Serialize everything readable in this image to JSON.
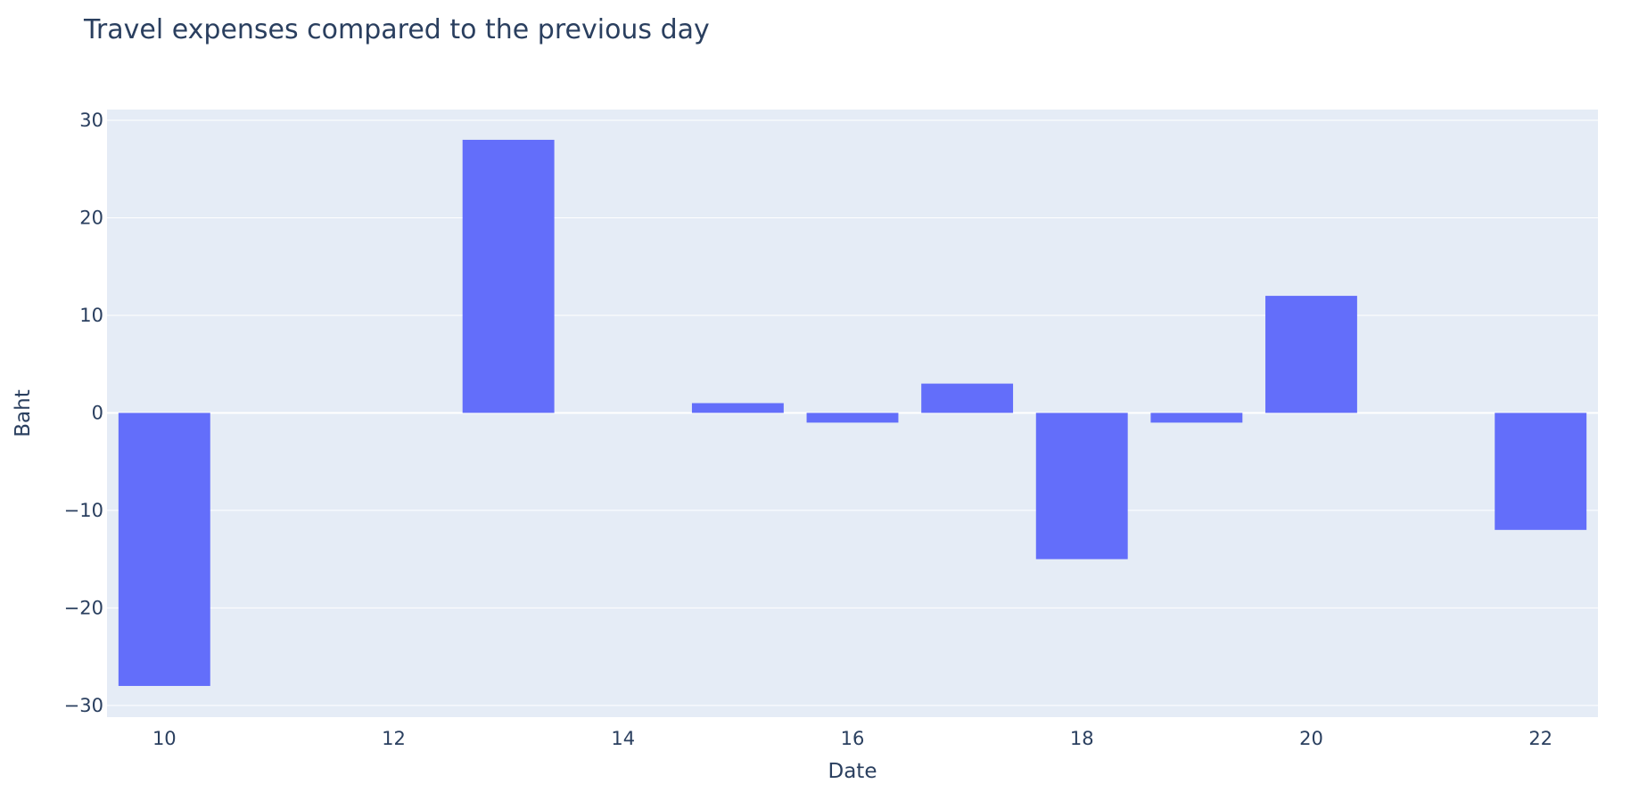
{
  "chart_data": {
    "type": "bar",
    "title": "Travel expenses compared to the previous day",
    "xlabel": "Date",
    "ylabel": "Baht",
    "x": [
      10,
      11,
      12,
      13,
      14,
      15,
      16,
      17,
      18,
      19,
      20,
      21,
      22
    ],
    "values": [
      -28,
      0,
      0,
      28,
      0,
      1,
      -1,
      3,
      -15,
      -1,
      12,
      0,
      -12
    ],
    "xlim": [
      9.5,
      22.5
    ],
    "ylim": [
      -31.2,
      31.1
    ],
    "xticks": [
      10,
      12,
      14,
      16,
      18,
      20,
      22
    ],
    "xtick_labels": [
      "10",
      "12",
      "14",
      "16",
      "18",
      "20",
      "22"
    ],
    "yticks": [
      30,
      20,
      10,
      0,
      -10,
      -20,
      -30
    ],
    "ytick_labels": [
      "30",
      "20",
      "10",
      "0",
      "−10",
      "−20",
      "−30"
    ],
    "grid": true,
    "legend": false,
    "colors": {
      "bar": "#636efa",
      "plot_bg": "#e5ecf6",
      "grid": "#ffffff",
      "text": "#2a3f5f"
    }
  }
}
